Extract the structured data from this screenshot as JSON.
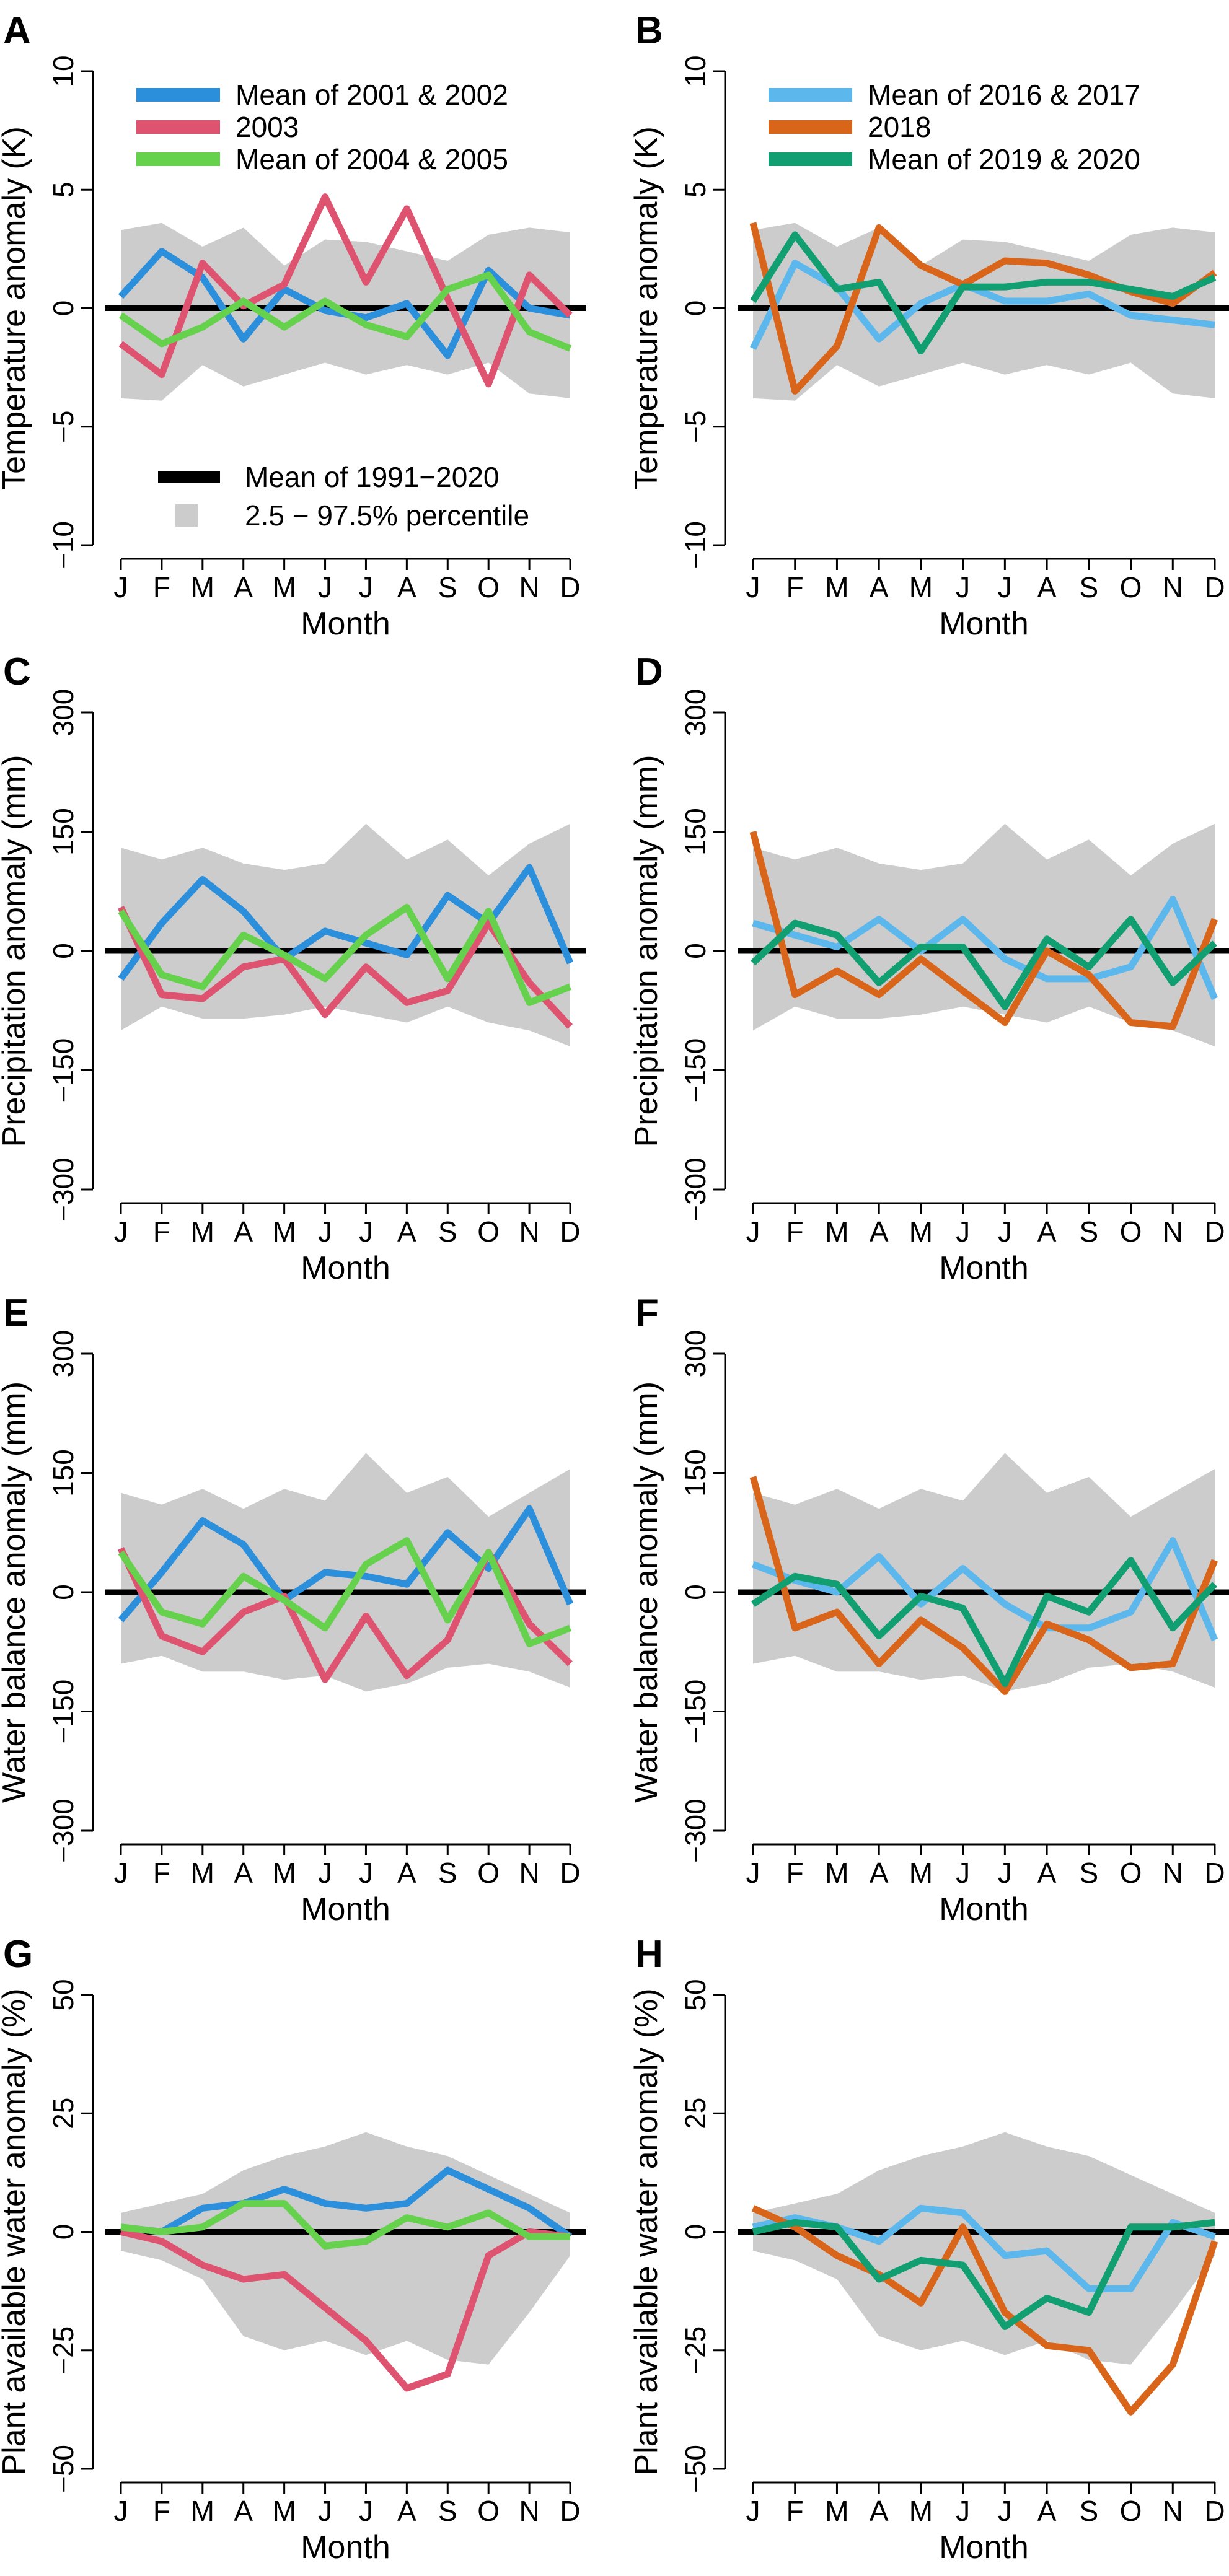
{
  "colors": {
    "blue": "#2b8fdc",
    "red": "#de5470",
    "green": "#66d14d",
    "light_blue": "#5cb8ec",
    "orange": "#d9651a",
    "teal": "#119f72",
    "baseline": "#000000",
    "band": "#cccccc"
  },
  "chart_data": [
    {
      "type": "line",
      "panel": "A",
      "xlabel": "Month",
      "ylabel": "Temperature anomaly (K)",
      "categories": [
        "J",
        "F",
        "M",
        "A",
        "M",
        "J",
        "J",
        "A",
        "S",
        "O",
        "N",
        "D"
      ],
      "ylim": [
        -10,
        10
      ],
      "yticks": [
        -10,
        -5,
        0,
        5,
        10
      ],
      "band_label": "2.5 − 97.5% percentile",
      "band_upper": [
        3.3,
        3.6,
        2.6,
        3.4,
        1.8,
        2.9,
        2.8,
        2.4,
        2.0,
        3.1,
        3.4,
        3.2
      ],
      "band_lower": [
        -3.8,
        -3.9,
        -2.4,
        -3.3,
        -2.8,
        -2.3,
        -2.8,
        -2.4,
        -2.8,
        -2.3,
        -3.6,
        -3.8
      ],
      "baseline_label": "Mean of 1991−2020",
      "series": [
        {
          "name": "Mean of 2001 & 2002",
          "color": "#2b8fdc",
          "values": [
            0.5,
            2.4,
            1.3,
            -1.3,
            0.8,
            -0.1,
            -0.4,
            0.2,
            -2.0,
            1.6,
            0.0,
            -0.3
          ]
        },
        {
          "name": "2003",
          "color": "#de5470",
          "values": [
            -1.5,
            -2.8,
            1.9,
            0.1,
            1.0,
            4.7,
            1.1,
            4.2,
            0.4,
            -3.2,
            1.4,
            -0.3
          ]
        },
        {
          "name": "Mean of 2004 & 2005",
          "color": "#66d14d",
          "values": [
            -0.3,
            -1.5,
            -0.8,
            0.3,
            -0.8,
            0.3,
            -0.7,
            -1.2,
            0.8,
            1.4,
            -1.0,
            -1.7
          ]
        }
      ],
      "legend_position": "top-left",
      "baseline_legend_position": "bottom-left"
    },
    {
      "type": "line",
      "panel": "B",
      "xlabel": "Month",
      "ylabel": "Temperature anomaly (K)",
      "categories": [
        "J",
        "F",
        "M",
        "A",
        "M",
        "J",
        "J",
        "A",
        "S",
        "O",
        "N",
        "D"
      ],
      "ylim": [
        -10,
        10
      ],
      "yticks": [
        -10,
        -5,
        0,
        5,
        10
      ],
      "band_upper": [
        3.3,
        3.6,
        2.6,
        3.4,
        1.8,
        2.9,
        2.8,
        2.4,
        2.0,
        3.1,
        3.4,
        3.2
      ],
      "band_lower": [
        -3.8,
        -3.9,
        -2.4,
        -3.3,
        -2.8,
        -2.3,
        -2.8,
        -2.4,
        -2.8,
        -2.3,
        -3.6,
        -3.8
      ],
      "series": [
        {
          "name": "Mean of 2016 & 2017",
          "color": "#5cb8ec",
          "values": [
            -1.7,
            1.9,
            0.9,
            -1.3,
            0.2,
            1.0,
            0.3,
            0.3,
            0.6,
            -0.3,
            -0.5,
            -0.7
          ]
        },
        {
          "name": "2018",
          "color": "#d9651a",
          "values": [
            3.6,
            -3.5,
            -1.6,
            3.4,
            1.8,
            1.0,
            2.0,
            1.9,
            1.4,
            0.7,
            0.2,
            1.5
          ]
        },
        {
          "name": "Mean of 2019 & 2020",
          "color": "#119f72",
          "values": [
            0.3,
            3.1,
            0.8,
            1.1,
            -1.8,
            0.9,
            0.9,
            1.1,
            1.1,
            0.8,
            0.5,
            1.3
          ]
        }
      ],
      "legend_position": "top-left"
    },
    {
      "type": "line",
      "panel": "C",
      "xlabel": "Month",
      "ylabel": "Precipitation anomaly (mm)",
      "categories": [
        "J",
        "F",
        "M",
        "A",
        "M",
        "J",
        "J",
        "A",
        "S",
        "O",
        "N",
        "D"
      ],
      "ylim": [
        -300,
        300
      ],
      "yticks": [
        -300,
        -150,
        0,
        150,
        300
      ],
      "band_upper": [
        130,
        115,
        130,
        110,
        102,
        110,
        160,
        115,
        140,
        95,
        135,
        160
      ],
      "band_lower": [
        -100,
        -70,
        -85,
        -85,
        -80,
        -70,
        -80,
        -90,
        -70,
        -90,
        -100,
        -120
      ],
      "series": [
        {
          "name": "Mean of 2001 & 2002",
          "color": "#2b8fdc",
          "values": [
            -35,
            35,
            90,
            50,
            -10,
            25,
            10,
            -5,
            70,
            35,
            105,
            -15
          ]
        },
        {
          "name": "2003",
          "color": "#de5470",
          "values": [
            55,
            -55,
            -60,
            -20,
            -10,
            -80,
            -20,
            -65,
            -50,
            35,
            -40,
            -95
          ]
        },
        {
          "name": "Mean of 2004 & 2005",
          "color": "#66d14d",
          "values": [
            50,
            -30,
            -45,
            20,
            -5,
            -35,
            20,
            55,
            -35,
            50,
            -65,
            -45
          ]
        }
      ]
    },
    {
      "type": "line",
      "panel": "D",
      "xlabel": "Month",
      "ylabel": "Precipitation anomaly (mm)",
      "categories": [
        "J",
        "F",
        "M",
        "A",
        "M",
        "J",
        "J",
        "A",
        "S",
        "O",
        "N",
        "D"
      ],
      "ylim": [
        -300,
        300
      ],
      "yticks": [
        -300,
        -150,
        0,
        150,
        300
      ],
      "band_upper": [
        130,
        115,
        130,
        110,
        102,
        110,
        160,
        115,
        140,
        95,
        135,
        160
      ],
      "band_lower": [
        -100,
        -70,
        -85,
        -85,
        -80,
        -70,
        -80,
        -90,
        -70,
        -90,
        -100,
        -120
      ],
      "series": [
        {
          "name": "Mean of 2016 & 2017",
          "color": "#5cb8ec",
          "values": [
            35,
            20,
            5,
            40,
            0,
            40,
            -10,
            -35,
            -35,
            -20,
            65,
            -60
          ]
        },
        {
          "name": "2018",
          "color": "#d9651a",
          "values": [
            150,
            -55,
            -25,
            -55,
            -10,
            -50,
            -90,
            0,
            -30,
            -90,
            -95,
            40
          ]
        },
        {
          "name": "Mean of 2019 & 2020",
          "color": "#119f72",
          "values": [
            -15,
            35,
            20,
            -40,
            5,
            5,
            -70,
            15,
            -20,
            40,
            -40,
            10
          ]
        }
      ]
    },
    {
      "type": "line",
      "panel": "E",
      "xlabel": "Month",
      "ylabel": "Water balance anomaly (mm)",
      "categories": [
        "J",
        "F",
        "M",
        "A",
        "M",
        "J",
        "J",
        "A",
        "S",
        "O",
        "N",
        "D"
      ],
      "ylim": [
        -300,
        300
      ],
      "yticks": [
        -300,
        -150,
        0,
        150,
        300
      ],
      "band_upper": [
        125,
        110,
        130,
        105,
        130,
        115,
        175,
        125,
        145,
        95,
        125,
        155
      ],
      "band_lower": [
        -90,
        -80,
        -100,
        -100,
        -110,
        -105,
        -125,
        -115,
        -95,
        -90,
        -100,
        -120
      ],
      "series": [
        {
          "name": "Mean of 2001 & 2002",
          "color": "#2b8fdc",
          "values": [
            -35,
            25,
            90,
            60,
            -10,
            25,
            20,
            10,
            75,
            30,
            105,
            -15
          ]
        },
        {
          "name": "2003",
          "color": "#de5470",
          "values": [
            55,
            -55,
            -75,
            -25,
            -5,
            -110,
            -30,
            -105,
            -60,
            50,
            -40,
            -90
          ]
        },
        {
          "name": "Mean of 2004 & 2005",
          "color": "#66d14d",
          "values": [
            50,
            -25,
            -40,
            20,
            -10,
            -45,
            35,
            65,
            -35,
            50,
            -65,
            -45
          ]
        }
      ]
    },
    {
      "type": "line",
      "panel": "F",
      "xlabel": "Month",
      "ylabel": "Water balance anomaly (mm)",
      "categories": [
        "J",
        "F",
        "M",
        "A",
        "M",
        "J",
        "J",
        "A",
        "S",
        "O",
        "N",
        "D"
      ],
      "ylim": [
        -300,
        300
      ],
      "yticks": [
        -300,
        -150,
        0,
        150,
        300
      ],
      "band_upper": [
        125,
        110,
        130,
        105,
        130,
        115,
        175,
        125,
        145,
        95,
        125,
        155
      ],
      "band_lower": [
        -90,
        -80,
        -100,
        -100,
        -110,
        -105,
        -125,
        -115,
        -95,
        -90,
        -100,
        -120
      ],
      "series": [
        {
          "name": "Mean of 2016 & 2017",
          "color": "#5cb8ec",
          "values": [
            35,
            15,
            0,
            45,
            -15,
            30,
            -15,
            -45,
            -45,
            -25,
            65,
            -60
          ]
        },
        {
          "name": "2018",
          "color": "#d9651a",
          "values": [
            145,
            -45,
            -25,
            -90,
            -35,
            -70,
            -125,
            -40,
            -60,
            -95,
            -90,
            40
          ]
        },
        {
          "name": "Mean of 2019 & 2020",
          "color": "#119f72",
          "values": [
            -15,
            20,
            10,
            -55,
            -5,
            -20,
            -115,
            -5,
            -25,
            40,
            -45,
            10
          ]
        }
      ]
    },
    {
      "type": "line",
      "panel": "G",
      "xlabel": "Month",
      "ylabel": "Plant available water anomaly (%)",
      "categories": [
        "J",
        "F",
        "M",
        "A",
        "M",
        "J",
        "J",
        "A",
        "S",
        "O",
        "N",
        "D"
      ],
      "ylim": [
        -50,
        50
      ],
      "yticks": [
        -50,
        -25,
        0,
        25,
        50
      ],
      "band_upper": [
        4,
        6,
        8,
        13,
        16,
        18,
        21,
        18,
        16,
        12,
        8,
        4
      ],
      "band_lower": [
        -4,
        -6,
        -10,
        -22,
        -25,
        -23,
        -26,
        -23,
        -27,
        -28,
        -17,
        -5
      ],
      "series": [
        {
          "name": "Mean of 2001 & 2002",
          "color": "#2b8fdc",
          "values": [
            1,
            0,
            5,
            6,
            9,
            6,
            5,
            6,
            13,
            9,
            5,
            -1
          ]
        },
        {
          "name": "2003",
          "color": "#de5470",
          "values": [
            0,
            -2,
            -7,
            -10,
            -9,
            -16,
            -23,
            -33,
            -30,
            -5,
            0,
            -1
          ]
        },
        {
          "name": "Mean of 2004 & 2005",
          "color": "#66d14d",
          "values": [
            1,
            0,
            1,
            6,
            6,
            -3,
            -2,
            3,
            1,
            4,
            -1,
            -1
          ]
        }
      ]
    },
    {
      "type": "line",
      "panel": "H",
      "xlabel": "Month",
      "ylabel": "Plant available water anomaly (%)",
      "categories": [
        "J",
        "F",
        "M",
        "A",
        "M",
        "J",
        "J",
        "A",
        "S",
        "O",
        "N",
        "D"
      ],
      "ylim": [
        -50,
        50
      ],
      "yticks": [
        -50,
        -25,
        0,
        25,
        50
      ],
      "band_upper": [
        4,
        6,
        8,
        13,
        16,
        18,
        21,
        18,
        16,
        12,
        8,
        4
      ],
      "band_lower": [
        -4,
        -6,
        -10,
        -22,
        -25,
        -23,
        -26,
        -23,
        -27,
        -28,
        -17,
        -5
      ],
      "series": [
        {
          "name": "Mean of 2016 & 2017",
          "color": "#5cb8ec",
          "values": [
            1,
            3,
            1,
            -2,
            5,
            4,
            -5,
            -4,
            -12,
            -12,
            2,
            -1
          ]
        },
        {
          "name": "2018",
          "color": "#d9651a",
          "values": [
            5,
            1,
            -5,
            -9,
            -15,
            1,
            -17,
            -24,
            -25,
            -38,
            -28,
            -2
          ]
        },
        {
          "name": "Mean of 2019 & 2020",
          "color": "#119f72",
          "values": [
            0,
            2,
            1,
            -10,
            -6,
            -7,
            -20,
            -14,
            -17,
            1,
            1,
            2
          ]
        }
      ]
    }
  ]
}
